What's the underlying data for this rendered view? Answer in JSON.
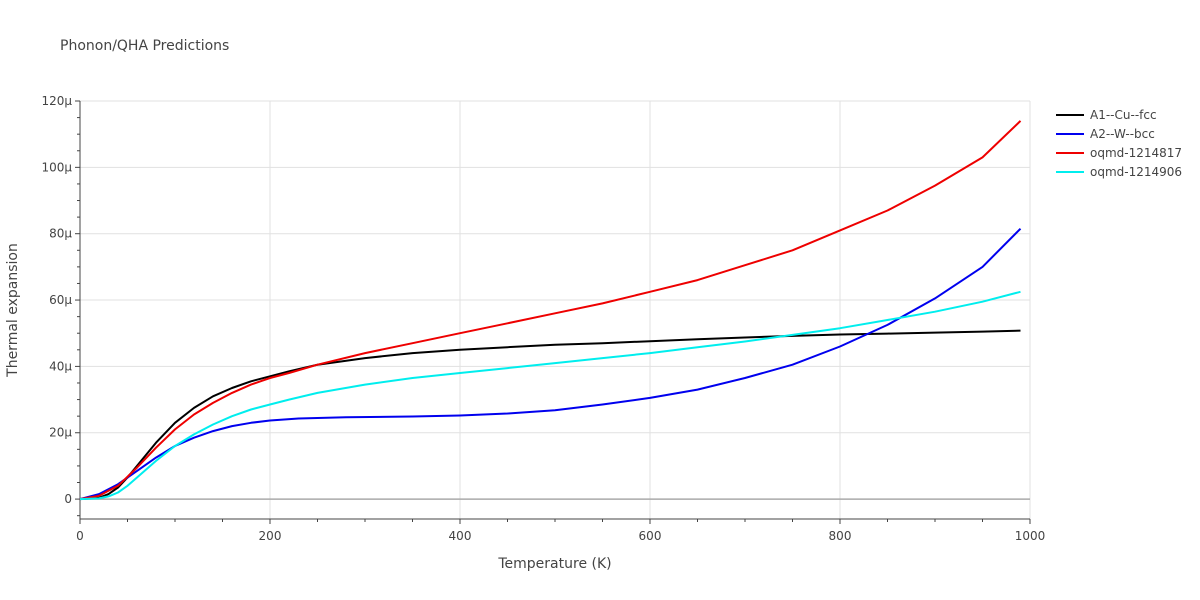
{
  "chart_data": {
    "type": "line",
    "title": "Phonon/QHA Predictions",
    "xlabel": "Temperature (K)",
    "ylabel": "Thermal expansion",
    "xlim": [
      0,
      1000
    ],
    "ylim": [
      -6,
      120
    ],
    "x_ticks": [
      0,
      200,
      400,
      600,
      800,
      1000
    ],
    "x_tick_labels": [
      "0",
      "200",
      "400",
      "600",
      "800",
      "1000"
    ],
    "y_ticks": [
      0,
      20,
      40,
      60,
      80,
      100,
      120
    ],
    "y_tick_labels": [
      "0",
      "20µ",
      "40µ",
      "60µ",
      "80µ",
      "100µ",
      "120µ"
    ],
    "y_unit_note": "values in units of 1e-6",
    "grid": true,
    "legend_position": "top-right outside",
    "series": [
      {
        "name": "A1--Cu--fcc",
        "color": "#000000",
        "x": [
          0,
          20,
          30,
          40,
          50,
          60,
          80,
          100,
          120,
          140,
          160,
          180,
          200,
          220,
          250,
          300,
          350,
          400,
          450,
          500,
          550,
          600,
          650,
          700,
          750,
          800,
          850,
          900,
          950,
          990
        ],
        "y": [
          0,
          0.4,
          1.5,
          3.5,
          6.5,
          10,
          17,
          23,
          27.5,
          31,
          33.5,
          35.5,
          37,
          38.5,
          40.5,
          42.5,
          44,
          45,
          45.8,
          46.5,
          47,
          47.6,
          48.2,
          48.7,
          49.2,
          49.6,
          49.9,
          50.2,
          50.5,
          50.8
        ]
      },
      {
        "name": "A2--W--bcc",
        "color": "#0000ee",
        "x": [
          0,
          20,
          40,
          60,
          80,
          100,
          120,
          140,
          160,
          180,
          200,
          230,
          280,
          350,
          400,
          450,
          500,
          550,
          600,
          650,
          700,
          750,
          800,
          850,
          900,
          950,
          990
        ],
        "y": [
          0,
          1.5,
          4.5,
          8.5,
          12.5,
          16,
          18.5,
          20.5,
          22,
          23,
          23.7,
          24.3,
          24.7,
          24.9,
          25.2,
          25.8,
          26.8,
          28.5,
          30.5,
          33,
          36.5,
          40.5,
          46,
          52.5,
          60.5,
          70,
          81.5
        ]
      },
      {
        "name": "oqmd-1214817",
        "color": "#ee0000",
        "x": [
          0,
          20,
          40,
          60,
          80,
          100,
          120,
          140,
          160,
          180,
          200,
          220,
          250,
          300,
          350,
          400,
          450,
          500,
          550,
          600,
          650,
          700,
          750,
          800,
          850,
          900,
          950,
          990
        ],
        "y": [
          0,
          1,
          4,
          9.5,
          15.5,
          21,
          25.5,
          29,
          32,
          34.5,
          36.5,
          38,
          40.5,
          44,
          47,
          50,
          53,
          56,
          59,
          62.5,
          66,
          70.5,
          75,
          81,
          87,
          94.5,
          103,
          114
        ]
      },
      {
        "name": "oqmd-1214906",
        "color": "#00eeee",
        "x": [
          0,
          20,
          30,
          40,
          50,
          60,
          80,
          100,
          120,
          140,
          160,
          180,
          200,
          220,
          250,
          300,
          350,
          400,
          450,
          500,
          550,
          600,
          650,
          700,
          750,
          800,
          850,
          900,
          950,
          990
        ],
        "y": [
          0,
          0.2,
          0.8,
          2,
          4,
          6.5,
          11.5,
          16,
          19.5,
          22.5,
          25,
          27,
          28.5,
          30,
          32,
          34.5,
          36.5,
          38,
          39.5,
          41,
          42.5,
          44,
          45.8,
          47.5,
          49.5,
          51.5,
          54,
          56.5,
          59.5,
          62.5
        ]
      }
    ]
  }
}
